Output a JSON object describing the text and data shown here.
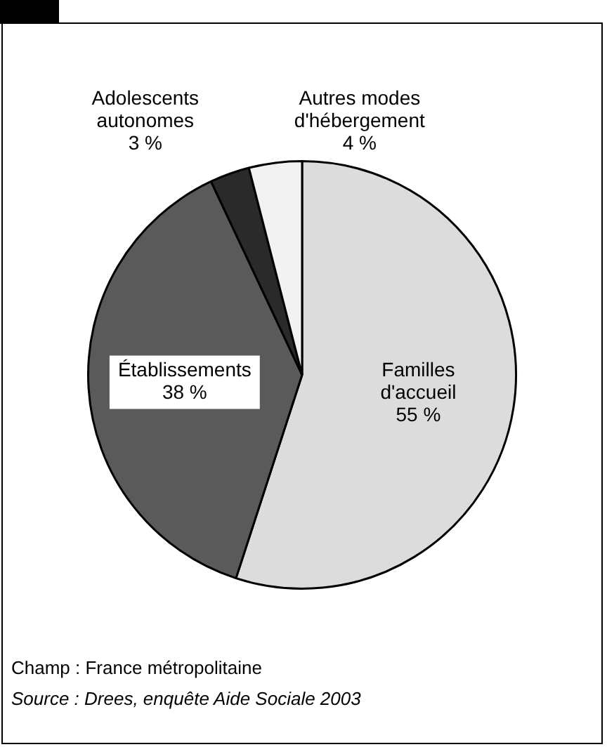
{
  "chart_data": {
    "type": "pie",
    "categories": [
      "Familles d'accueil",
      "Établissements",
      "Adolescents autonomes",
      "Autres modes d'hébergement"
    ],
    "values": [
      55,
      38,
      3,
      4
    ],
    "colors": [
      "#dcdcdc",
      "#5a5a5a",
      "#2a2a2a",
      "#f2f2f2"
    ],
    "value_labels": [
      "55 %",
      "38 %",
      "3 %",
      "4 %"
    ],
    "legend": false,
    "annotations": [
      "Champ : France métropolitaine",
      "Source : Drees, enquête Aide Sociale 2003"
    ]
  }
}
